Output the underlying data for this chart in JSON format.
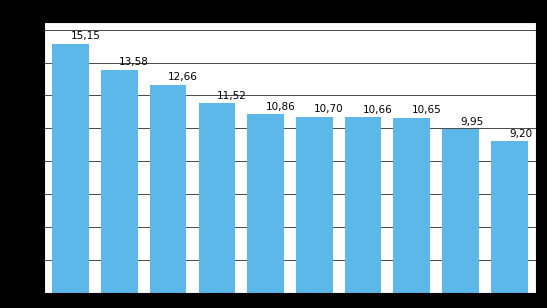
{
  "values": [
    15.15,
    13.58,
    12.66,
    11.52,
    10.86,
    10.7,
    10.66,
    10.65,
    9.95,
    9.2
  ],
  "bar_color": "#5BB8E8",
  "bar_edge_color": "none",
  "ylim": [
    0,
    16.5
  ],
  "grid_color": "#000000",
  "grid_linewidth": 0.5,
  "label_fontsize": 7.5,
  "background_color": "#ffffff",
  "outer_background": "#000000",
  "bar_width": 0.75,
  "spine_color": "#000000",
  "spine_linewidth": 0.8
}
